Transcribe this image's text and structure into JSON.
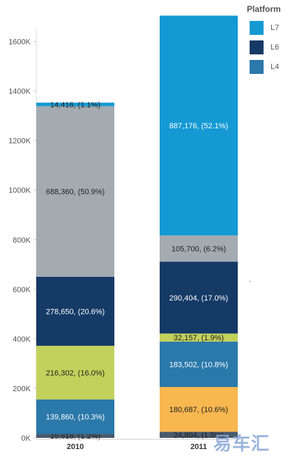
{
  "legend": {
    "title": "Platform",
    "items": [
      {
        "label": "L7",
        "color": "#1499d3"
      },
      {
        "label": "L6",
        "color": "#153a66"
      },
      {
        "label": "L4",
        "color": "#2b78aa"
      }
    ]
  },
  "watermark": "易车汇",
  "chart_data": {
    "type": "bar",
    "stacked": true,
    "categories": [
      "2010",
      "2011"
    ],
    "ylim": [
      0,
      1700000
    ],
    "y_ticks": [
      {
        "value": 0,
        "label": "0K"
      },
      {
        "value": 200000,
        "label": "200K"
      },
      {
        "value": 400000,
        "label": "400K"
      },
      {
        "value": 600000,
        "label": "600K"
      },
      {
        "value": 800000,
        "label": "800K"
      },
      {
        "value": 1000000,
        "label": "1000K"
      },
      {
        "value": 1200000,
        "label": "1200K"
      },
      {
        "value": 1400000,
        "label": "1400K"
      },
      {
        "value": 1600000,
        "label": "1600K"
      }
    ],
    "grid": false,
    "legend_position": "top-right",
    "stacks": [
      {
        "category": "2010",
        "segments": [
          {
            "value": 15618,
            "label": "15,618, (1.2%)",
            "color": "#4a5a6b",
            "text_color": "#222222"
          },
          {
            "value": 139860,
            "label": "139,860, (10.3%)",
            "color": "#2b78aa",
            "text_color": "#ffffff"
          },
          {
            "value": 216302,
            "label": "216,302, (16.0%)",
            "color": "#c2d15b",
            "text_color": "#222222"
          },
          {
            "value": 278650,
            "label": "278,650, (20.6%)",
            "color": "#153a66",
            "text_color": "#ffffff"
          },
          {
            "value": 688360,
            "label": "688,360, (50.9%)",
            "color": "#a3abb0",
            "text_color": "#222222"
          },
          {
            "value": 14416,
            "label": "14,416, (1.1%)",
            "color": "#1499d3",
            "text_color": "#222222"
          }
        ]
      },
      {
        "category": "2011",
        "segments": [
          {
            "value": 24804,
            "label": "24,804, (1.5%)",
            "color": "#4a5a6b",
            "text_color": "#222222"
          },
          {
            "value": 180687,
            "label": "180,687, (10.6%)",
            "color": "#f8b74f",
            "text_color": "#222222"
          },
          {
            "value": 183502,
            "label": "183,502, (10.8%)",
            "color": "#2b78aa",
            "text_color": "#ffffff"
          },
          {
            "value": 32157,
            "label": "32,157, (1.9%)",
            "color": "#c2d15b",
            "text_color": "#222222"
          },
          {
            "value": 290404,
            "label": "290,404, (17.0%)",
            "color": "#153a66",
            "text_color": "#ffffff"
          },
          {
            "value": 105700,
            "label": "105,700, (6.2%)",
            "color": "#a3abb0",
            "text_color": "#222222"
          },
          {
            "value": 887176,
            "label": "887,176, (52.1%)",
            "color": "#1499d3",
            "text_color": "#ffffff"
          }
        ]
      }
    ]
  }
}
